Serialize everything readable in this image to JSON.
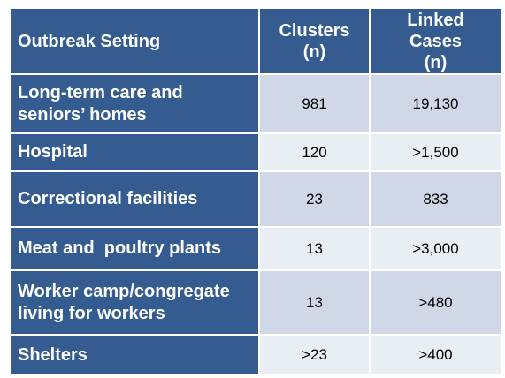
{
  "table": {
    "header": [
      "Outbreak Setting",
      "Clusters\n(n)",
      "Linked\nCases\n(n)"
    ],
    "rows": [
      [
        "Long-term care and\nseniors’ homes",
        "981",
        "19,130"
      ],
      [
        "Hospital",
        "120",
        ">1,500"
      ],
      [
        "Correctional facilities",
        "23",
        "833"
      ],
      [
        "Meat and  poultry plants",
        "13",
        ">3,000"
      ],
      [
        "Worker camp/congregate\nliving for workers",
        "13",
        ">480"
      ],
      [
        "Shelters",
        ">23",
        ">400"
      ]
    ]
  }
}
